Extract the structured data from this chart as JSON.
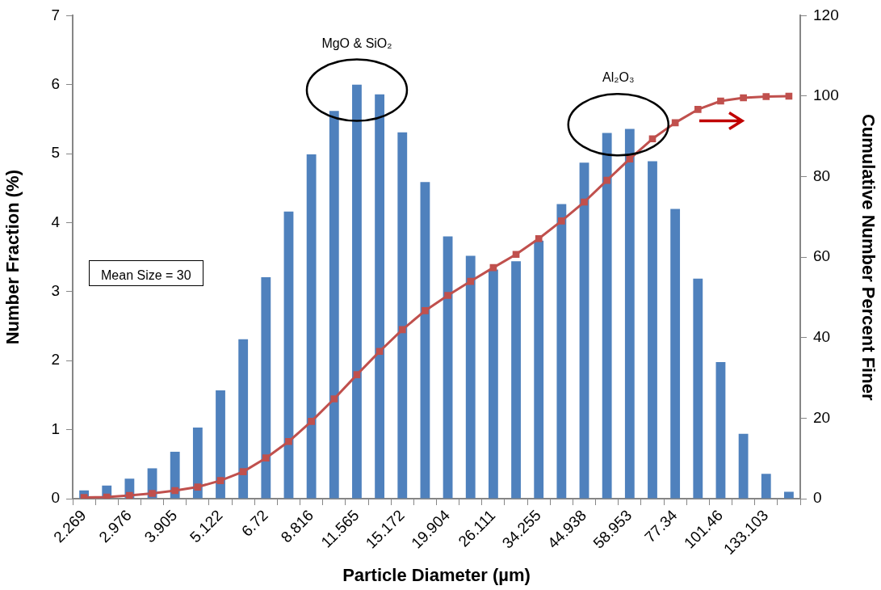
{
  "chart_data": {
    "type": "bar",
    "xlabel": "Particle Diameter (µm)",
    "ylabel": "Number Fraction (%)",
    "y2label": "Cumulative Number Percent Finer",
    "categories": [
      "2.269",
      null,
      "2.976",
      null,
      "3.905",
      null,
      "5.122",
      null,
      "6.72",
      null,
      "8.816",
      null,
      "11.565",
      null,
      "15.172",
      null,
      "19.904",
      null,
      "26.111",
      null,
      "34.255",
      null,
      "44.938",
      null,
      "58.953",
      null,
      "77.34",
      null,
      "101.46",
      null,
      "133.103",
      null
    ],
    "series": [
      {
        "color": "#4f81bd",
        "values": [
          0.12,
          0.19,
          0.29,
          0.44,
          0.68,
          1.03,
          1.57,
          2.31,
          3.21,
          4.16,
          4.99,
          5.62,
          6.0,
          5.86,
          5.31,
          4.59,
          3.8,
          3.52,
          3.32,
          3.44,
          3.74,
          4.27,
          4.87,
          5.3,
          5.36,
          4.89,
          4.2,
          3.19,
          1.98,
          0.94,
          0.36,
          0.1
        ]
      },
      {
        "type": "line",
        "axis": "y2",
        "color": "#c0504d",
        "marker": "square",
        "values": [
          0.3,
          0.4,
          0.8,
          1.3,
          2.0,
          2.9,
          4.5,
          6.7,
          10.1,
          14.2,
          19.2,
          24.8,
          30.8,
          36.6,
          42.0,
          46.7,
          50.5,
          54.0,
          57.4,
          60.7,
          64.6,
          69.0,
          73.7,
          79.1,
          84.4,
          89.4,
          93.4,
          96.7,
          98.8,
          99.6,
          99.9,
          100
        ]
      }
    ],
    "ylim": [
      0,
      7
    ],
    "yticks": [
      0,
      1,
      2,
      3,
      4,
      5,
      6,
      7
    ],
    "y2lim": [
      0,
      120
    ],
    "y2ticks": [
      0,
      20,
      40,
      60,
      80,
      100,
      120
    ],
    "grid": false,
    "legend": false,
    "annotations": [
      "MgO & SiO₂",
      "Al₂O₃",
      "Mean Size = 30"
    ]
  }
}
